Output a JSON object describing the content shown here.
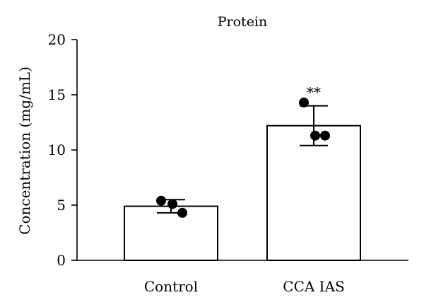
{
  "chart_data": {
    "type": "bar",
    "title": "Protein",
    "ylabel": "Concentration (mg/mL)",
    "xlabel": "",
    "ylim": [
      0,
      20
    ],
    "yticks": [
      0,
      5,
      10,
      15,
      20
    ],
    "categories": [
      "Control",
      "CCA IAS"
    ],
    "values": [
      4.9,
      12.2
    ],
    "error": [
      0.6,
      1.8
    ],
    "points": [
      [
        5.4,
        5.1,
        4.3
      ],
      [
        14.3,
        11.3,
        11.3
      ]
    ],
    "annotations": [
      "",
      "**"
    ],
    "bar_fill": "#ffffff",
    "bar_stroke": "#000000",
    "point_color": "#000000"
  }
}
